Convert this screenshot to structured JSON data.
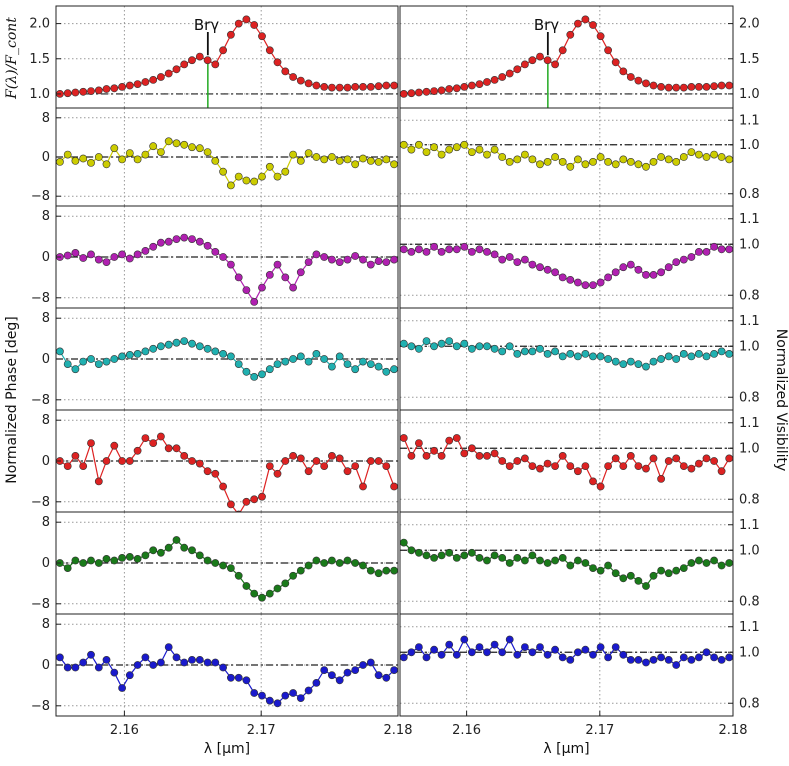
{
  "chart_data": {
    "type": "line",
    "xlabel": "λ [μm]",
    "ylabel_top": "F(λ)/F_cont",
    "ylabel_left": "Normalized Phase [deg]",
    "ylabel_right": "Normalized Visibility",
    "xlim": [
      2.155,
      2.18
    ],
    "xticks": [
      "2.16",
      "2.17",
      "2.18"
    ],
    "annotation": {
      "text": "Brγ",
      "x": 2.1661
    },
    "grid": true,
    "top_panel": {
      "ylim": [
        0.8,
        2.25
      ],
      "yticks": [
        "1.0",
        "1.5",
        "2.0"
      ],
      "reference_line": 1.0
    },
    "phase_panels": {
      "ylim": [
        -10,
        10
      ],
      "yticks": [
        "8",
        "0",
        "−8"
      ],
      "reference_line": 0
    },
    "visibility_panels": {
      "ylim": [
        0.75,
        1.15
      ],
      "yticks": [
        "1.1",
        "1.0",
        "0.8"
      ]
    },
    "series": [
      {
        "color": "#cccc00",
        "phase": [
          -1.0,
          0.5,
          -0.8,
          -0.3,
          -1.2,
          0.0,
          -1.5,
          1.8,
          -0.5,
          0.8,
          -0.5,
          0.5,
          2.2,
          1.0,
          3.2,
          2.8,
          2.5,
          2.0,
          1.8,
          1.0,
          -0.8,
          -3.0,
          -5.8,
          -4.0,
          -4.8,
          -5.0,
          -4.0,
          -2.0,
          -4.0,
          -3.0,
          0.5,
          -0.8,
          0.8,
          0.0,
          -0.5,
          0.0,
          -0.8,
          -0.5,
          -1.5,
          -0.3,
          -0.8,
          -1.0,
          -0.5,
          -1.5
        ],
        "visibility": [
          1.0,
          0.98,
          1.0,
          0.97,
          0.99,
          0.96,
          0.98,
          0.99,
          1.0,
          0.97,
          0.98,
          0.96,
          0.98,
          0.95,
          0.93,
          0.94,
          0.96,
          0.94,
          0.92,
          0.93,
          0.95,
          0.93,
          0.91,
          0.94,
          0.92,
          0.93,
          0.95,
          0.93,
          0.92,
          0.94,
          0.93,
          0.92,
          0.91,
          0.93,
          0.95,
          0.94,
          0.93,
          0.95,
          0.97,
          0.96,
          0.95,
          0.96,
          0.95,
          0.94
        ],
        "vis_ref": 1.0
      },
      {
        "color": "#b020b0",
        "phase": [
          0.0,
          0.3,
          0.8,
          -0.2,
          0.5,
          -0.5,
          -1.0,
          0.0,
          0.5,
          -0.3,
          0.5,
          1.2,
          2.0,
          2.8,
          3.0,
          3.5,
          3.8,
          3.5,
          3.0,
          2.2,
          1.0,
          0.0,
          -1.5,
          -4.0,
          -6.5,
          -8.8,
          -6.0,
          -3.5,
          -1.5,
          -4.0,
          -6.0,
          -3.0,
          -1.0,
          0.5,
          0.0,
          -0.5,
          -1.0,
          -0.5,
          0.2,
          -0.5,
          -1.5,
          -0.8,
          -1.0,
          -0.5
        ],
        "visibility": [
          0.98,
          0.97,
          0.98,
          0.97,
          0.99,
          0.97,
          0.98,
          0.98,
          0.99,
          0.97,
          0.98,
          0.97,
          0.96,
          0.94,
          0.95,
          0.93,
          0.94,
          0.92,
          0.91,
          0.9,
          0.89,
          0.87,
          0.86,
          0.85,
          0.84,
          0.84,
          0.85,
          0.87,
          0.89,
          0.91,
          0.92,
          0.9,
          0.88,
          0.88,
          0.89,
          0.91,
          0.93,
          0.94,
          0.95,
          0.97,
          0.97,
          0.99,
          0.98,
          0.98
        ],
        "vis_ref": 1.0
      },
      {
        "color": "#20b0b0",
        "phase": [
          1.5,
          -1.0,
          -2.0,
          -0.5,
          0.0,
          -1.0,
          -0.5,
          0.0,
          0.5,
          0.8,
          1.0,
          1.5,
          2.0,
          2.5,
          2.8,
          3.2,
          3.5,
          3.0,
          2.5,
          2.0,
          1.5,
          1.0,
          0.5,
          -1.0,
          -2.5,
          -3.5,
          -3.0,
          -2.0,
          -1.0,
          -0.5,
          0.0,
          0.5,
          -0.5,
          1.0,
          0.0,
          -1.5,
          0.5,
          -1.0,
          -2.0,
          -0.5,
          -1.0,
          -1.5,
          -2.5,
          -2.0
        ],
        "visibility": [
          1.01,
          1.0,
          0.99,
          1.02,
          1.0,
          1.01,
          1.02,
          1.0,
          1.01,
          0.99,
          1.0,
          1.0,
          0.99,
          0.98,
          1.0,
          0.97,
          0.98,
          0.98,
          0.99,
          0.97,
          0.98,
          0.96,
          0.97,
          0.96,
          0.97,
          0.96,
          0.96,
          0.95,
          0.94,
          0.93,
          0.94,
          0.93,
          0.92,
          0.94,
          0.95,
          0.96,
          0.95,
          0.97,
          0.96,
          0.97,
          0.96,
          0.97,
          0.98,
          0.97
        ],
        "vis_ref": 1.0
      },
      {
        "color": "#dd2222",
        "phase": [
          0.0,
          -1.0,
          1.0,
          -1.0,
          3.5,
          -4.0,
          0.0,
          3.0,
          0.0,
          0.0,
          2.0,
          4.5,
          3.5,
          4.8,
          2.5,
          2.5,
          1.0,
          0.0,
          -0.5,
          -2.0,
          -2.5,
          -5.0,
          -8.5,
          -10.5,
          -8.0,
          -7.5,
          -7.0,
          -1.0,
          -2.5,
          0.0,
          1.0,
          0.5,
          -2.0,
          0.0,
          -1.0,
          1.0,
          0.5,
          -2.0,
          -1.0,
          -5.0,
          0.0,
          0.0,
          -1.0,
          -5.0
        ],
        "visibility": [
          1.04,
          0.97,
          1.02,
          0.97,
          0.99,
          0.97,
          1.03,
          1.04,
          0.98,
          1.0,
          0.97,
          0.97,
          0.98,
          0.95,
          0.93,
          0.95,
          0.96,
          0.93,
          0.92,
          0.94,
          0.93,
          0.97,
          0.93,
          0.91,
          0.93,
          0.87,
          0.85,
          0.93,
          0.96,
          0.93,
          0.97,
          0.93,
          0.92,
          0.96,
          0.88,
          0.95,
          0.96,
          0.93,
          0.92,
          0.94,
          0.96,
          0.95,
          0.91,
          0.96
        ],
        "vis_ref": 1.0
      },
      {
        "color": "#1a7a1a",
        "phase": [
          0.0,
          -1.0,
          0.5,
          0.0,
          0.5,
          0.0,
          0.8,
          0.5,
          1.0,
          1.2,
          0.8,
          1.5,
          2.5,
          2.0,
          3.0,
          4.5,
          3.0,
          2.5,
          1.5,
          0.5,
          0.0,
          -0.5,
          -1.0,
          -2.5,
          -4.5,
          -6.0,
          -6.8,
          -6.0,
          -5.0,
          -4.0,
          -2.5,
          -1.5,
          -0.5,
          0.5,
          0.0,
          0.5,
          0.0,
          0.5,
          0.0,
          -0.5,
          -1.5,
          -2.0,
          -1.5,
          -1.5
        ],
        "visibility": [
          1.03,
          1.0,
          0.99,
          0.98,
          0.97,
          0.98,
          0.99,
          0.97,
          0.98,
          0.99,
          0.97,
          0.96,
          0.98,
          0.97,
          0.95,
          0.97,
          0.96,
          0.98,
          0.96,
          0.95,
          0.96,
          0.97,
          0.94,
          0.96,
          0.95,
          0.93,
          0.92,
          0.94,
          0.91,
          0.89,
          0.9,
          0.88,
          0.86,
          0.9,
          0.92,
          0.91,
          0.92,
          0.93,
          0.95,
          0.96,
          0.95,
          0.96,
          0.94,
          0.95
        ],
        "vis_ref": 1.0
      },
      {
        "color": "#1a1acc",
        "phase": [
          1.5,
          -0.5,
          -0.5,
          0.5,
          2.0,
          -0.5,
          1.0,
          -1.5,
          -4.5,
          -2.0,
          0.0,
          1.5,
          0.0,
          0.5,
          3.5,
          1.5,
          0.5,
          1.0,
          1.0,
          0.5,
          0.5,
          -0.5,
          -2.5,
          -2.5,
          -3.0,
          -5.5,
          -6.0,
          -7.0,
          -7.5,
          -6.0,
          -5.5,
          -6.5,
          -5.0,
          -3.5,
          -1.0,
          -2.0,
          -3.0,
          -1.5,
          -1.0,
          0.0,
          0.5,
          -2.0,
          -2.5,
          -1.0
        ],
        "visibility": [
          0.98,
          1.0,
          1.02,
          0.98,
          1.01,
          0.99,
          1.03,
          0.99,
          1.05,
          1.0,
          1.02,
          1.0,
          1.03,
          1.0,
          1.05,
          0.99,
          1.02,
          1.0,
          1.02,
          0.99,
          1.01,
          0.98,
          0.97,
          1.0,
          1.01,
          0.99,
          1.02,
          0.98,
          1.02,
          0.99,
          0.97,
          0.97,
          0.96,
          0.97,
          0.98,
          0.97,
          0.95,
          0.98,
          0.97,
          0.98,
          1.0,
          0.98,
          0.97,
          0.98
        ],
        "vis_ref": 1.0
      }
    ],
    "flux": [
      1.0,
      1.01,
      1.02,
      1.03,
      1.04,
      1.05,
      1.07,
      1.08,
      1.1,
      1.12,
      1.14,
      1.17,
      1.2,
      1.24,
      1.29,
      1.35,
      1.42,
      1.48,
      1.53,
      1.48,
      1.42,
      1.62,
      1.84,
      2.0,
      2.06,
      1.98,
      1.82,
      1.62,
      1.45,
      1.32,
      1.24,
      1.19,
      1.15,
      1.12,
      1.1,
      1.09,
      1.09,
      1.09,
      1.1,
      1.1,
      1.1,
      1.11,
      1.12,
      1.12
    ],
    "flux_color": "#dd2222"
  }
}
